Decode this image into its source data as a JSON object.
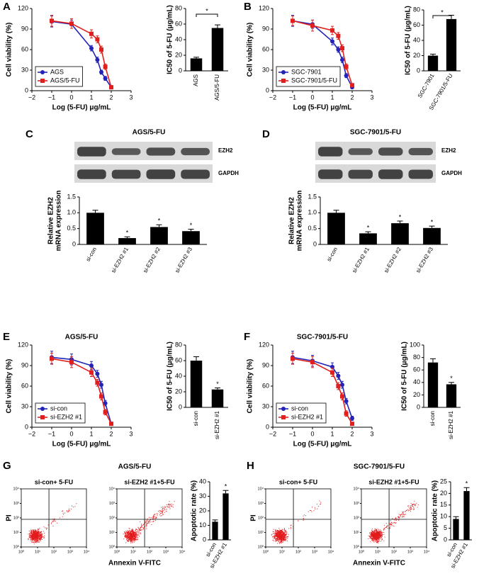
{
  "chart_data": [
    {
      "type": "line",
      "panel": "A",
      "xlabel": "Log (5-FU) μg/mL",
      "ylabel": "Cell viability (%)",
      "x": [
        -1,
        0,
        1,
        1.3,
        1.5,
        1.7,
        2
      ],
      "xlim": [
        -2,
        3
      ],
      "xticks": [
        {
          "value": -2,
          "label": "−2"
        },
        {
          "value": -1,
          "label": "−1"
        },
        0,
        1,
        2,
        3
      ],
      "ylim": [
        0,
        120
      ],
      "yticks": [
        0,
        30,
        60,
        90,
        120
      ],
      "legend": "lower left",
      "series": [
        {
          "name": "AGS",
          "color": "#2323b8",
          "marker": "circle",
          "values": [
            101,
            97,
            62,
            45,
            27,
            18,
            5
          ],
          "errors": [
            8,
            6,
            4,
            4,
            3,
            3,
            2
          ]
        },
        {
          "name": "AGS/5-FU",
          "color": "#e0201e",
          "marker": "square",
          "values": [
            102,
            98,
            83,
            75,
            60,
            35,
            5
          ],
          "errors": [
            8,
            7,
            6,
            5,
            5,
            4,
            2
          ]
        }
      ]
    },
    {
      "type": "bar",
      "ylabel": "IC50 of 5-FU (μg/mL)",
      "categories": [
        "AGS",
        "AGS/5-FU"
      ],
      "values": [
        16,
        55
      ],
      "errors": [
        1.5,
        4
      ],
      "color": "#000000",
      "ylim": [
        0,
        80
      ],
      "yticks": [
        0,
        20,
        40,
        60,
        80
      ],
      "bracket": "*"
    },
    {
      "type": "line",
      "panel": "B",
      "xlabel": "Log (5-FU) μg/mL",
      "ylabel": "Cell viability (%)",
      "x": [
        -1,
        0,
        1,
        1.3,
        1.5,
        1.7,
        2
      ],
      "xlim": [
        -2,
        3
      ],
      "xticks": [
        {
          "value": -2,
          "label": "−2"
        },
        {
          "value": -1,
          "label": "−1"
        },
        0,
        1,
        2,
        3
      ],
      "ylim": [
        0,
        120
      ],
      "yticks": [
        0,
        30,
        60,
        90,
        120
      ],
      "legend": "lower left",
      "series": [
        {
          "name": "SGC-7901",
          "color": "#2323b8",
          "marker": "circle",
          "values": [
            102,
            97,
            72,
            60,
            45,
            22,
            5
          ],
          "errors": [
            8,
            6,
            5,
            4,
            4,
            3,
            2
          ]
        },
        {
          "name": "SGC-7901/5-FU",
          "color": "#e0201e",
          "marker": "square",
          "values": [
            102,
            95,
            88,
            80,
            62,
            35,
            8
          ],
          "errors": [
            7,
            8,
            6,
            5,
            5,
            4,
            2
          ]
        }
      ]
    },
    {
      "type": "bar",
      "ylabel": "IC50 of 5-FU (μg/mL)",
      "categories": [
        "SGC-7901",
        "SGC-7901/5-FU"
      ],
      "values": [
        20,
        68
      ],
      "errors": [
        2,
        5
      ],
      "color": "#000000",
      "ylim": [
        0,
        80
      ],
      "yticks": [
        0,
        20,
        40,
        60,
        80
      ],
      "bracket": "*"
    },
    {
      "type": "blot",
      "panel": "C",
      "panel_title": "AGS/5-FU",
      "bands": [
        "EZH2",
        "GAPDH"
      ]
    },
    {
      "type": "bar",
      "ylabel": [
        "Relative EZH2",
        "mRNA expression"
      ],
      "categories": [
        "si-con",
        "si-EZH2 #1",
        "si-EZH2 #2",
        "si-EZH2 #3"
      ],
      "values": [
        1.0,
        0.2,
        0.55,
        0.42
      ],
      "errors": [
        0.08,
        0.04,
        0.07,
        0.06
      ],
      "color": "#000000",
      "significance": [
        null,
        "*",
        "*",
        "*"
      ],
      "ylim": [
        0,
        1.5
      ],
      "yticks": [
        0,
        0.5,
        {
          "value": 1,
          "label": "1.0"
        },
        1.5
      ]
    },
    {
      "type": "blot",
      "panel": "D",
      "panel_title": "SGC-7901/5-FU",
      "bands": [
        "EZH2",
        "GAPDH"
      ]
    },
    {
      "type": "bar",
      "ylabel": [
        "Relative EZH2",
        "mRNA expression"
      ],
      "categories": [
        "si-con",
        "si-EZH2 #1",
        "si-EZH2 #2",
        "si-EZH2 #3"
      ],
      "values": [
        1.0,
        0.35,
        0.67,
        0.52
      ],
      "errors": [
        0.08,
        0.05,
        0.07,
        0.06
      ],
      "color": "#000000",
      "significance": [
        null,
        "*",
        "*",
        "*"
      ],
      "ylim": [
        0,
        1.5
      ],
      "yticks": [
        0,
        0.5,
        {
          "value": 1,
          "label": "1.0"
        },
        1.5
      ]
    },
    {
      "type": "line",
      "panel": "E",
      "panel_title": "AGS/5-FU",
      "xlabel": "Log (5-FU) μg/mL",
      "ylabel": "Cell viability (%)",
      "x": [
        -1,
        0,
        1,
        1.3,
        1.5,
        1.7,
        2
      ],
      "xlim": [
        -2,
        3
      ],
      "xticks": [
        {
          "value": -2,
          "label": "−2"
        },
        {
          "value": -1,
          "label": "−1"
        },
        0,
        1,
        2,
        3
      ],
      "ylim": [
        0,
        120
      ],
      "yticks": [
        0,
        30,
        60,
        90,
        120
      ],
      "legend": "lower left",
      "series": [
        {
          "name": "si-con",
          "color": "#2323b8",
          "marker": "circle",
          "values": [
            102,
            99,
            90,
            78,
            62,
            35,
            5
          ],
          "errors": [
            9,
            8,
            6,
            5,
            5,
            4,
            2
          ]
        },
        {
          "name": "si-EZH2 #1",
          "color": "#e0201e",
          "marker": "square",
          "values": [
            100,
            95,
            80,
            65,
            45,
            22,
            5
          ],
          "errors": [
            8,
            8,
            6,
            5,
            5,
            4,
            2
          ]
        }
      ]
    },
    {
      "type": "bar",
      "ylabel": "IC50 of 5-FU (μg/mL)",
      "categories": [
        "si-con",
        "si-EZH2 #1"
      ],
      "values": [
        60,
        23
      ],
      "errors": [
        5,
        2
      ],
      "color": "#000000",
      "significance": [
        null,
        "*"
      ],
      "ylim": [
        0,
        80
      ],
      "yticks": [
        0,
        20,
        40,
        60,
        80
      ]
    },
    {
      "type": "line",
      "panel": "F",
      "panel_title": "SGC-7901/5-FU",
      "xlabel": "Log (5-FU) μg/mL",
      "ylabel": "Cell viability (%)",
      "x": [
        -1,
        0,
        1,
        1.3,
        1.5,
        1.7,
        2
      ],
      "xlim": [
        -2,
        3
      ],
      "xticks": [
        {
          "value": -2,
          "label": "−2"
        },
        {
          "value": -1,
          "label": "−1"
        },
        0,
        1,
        2,
        3
      ],
      "ylim": [
        0,
        120
      ],
      "yticks": [
        0,
        30,
        60,
        90,
        120
      ],
      "legend": "lower left",
      "series": [
        {
          "name": "si-con",
          "color": "#2323b8",
          "marker": "circle",
          "values": [
            102,
            97,
            88,
            75,
            62,
            38,
            13
          ],
          "errors": [
            9,
            8,
            6,
            5,
            5,
            4,
            3
          ]
        },
        {
          "name": "si-EZH2 #1",
          "color": "#e0201e",
          "marker": "square",
          "values": [
            100,
            95,
            80,
            60,
            45,
            20,
            5
          ],
          "errors": [
            8,
            8,
            6,
            5,
            5,
            4,
            2
          ]
        }
      ]
    },
    {
      "type": "bar",
      "ylabel": "IC50 of 5-FU (μg/mL)",
      "categories": [
        "si-con",
        "si-EZH2 #1"
      ],
      "values": [
        72,
        37
      ],
      "errors": [
        6,
        3
      ],
      "color": "#000000",
      "significance": [
        null,
        "*"
      ],
      "ylim": [
        0,
        100
      ],
      "yticks": [
        0,
        20,
        40,
        60,
        80,
        100
      ]
    },
    {
      "type": "flow",
      "panel": "G",
      "panel_title": "AGS/5-FU",
      "title": "si-con+ 5-FU",
      "xlabel": "Annexin V-FITC",
      "ylabel": "PI",
      "log": true,
      "xlim": [
        1,
        10000
      ],
      "ylim": [
        1,
        10000
      ],
      "quadrant": [
        50,
        80
      ],
      "xticks": [
        {
          "value": 1,
          "label": "10⁰"
        },
        {
          "value": 10,
          "label": "10¹"
        },
        {
          "value": 100,
          "label": "10²"
        },
        {
          "value": 1000,
          "label": "10³"
        },
        {
          "value": 10000,
          "label": "10⁴"
        }
      ],
      "yticks": [
        {
          "value": 1,
          "label": "10⁰"
        },
        {
          "value": 10,
          "label": "10¹"
        },
        {
          "value": 100,
          "label": "10²"
        },
        {
          "value": 1000,
          "label": "10³"
        },
        {
          "value": 10000,
          "label": "10⁴"
        }
      ]
    },
    {
      "type": "flow",
      "title": "si-EZH2 #1+5-FU",
      "log": true,
      "xlim": [
        1,
        10000
      ],
      "ylim": [
        1,
        10000
      ],
      "quadrant": [
        50,
        80
      ],
      "xticks": [
        {
          "value": 1,
          "label": "10⁰"
        },
        {
          "value": 10,
          "label": "10¹"
        },
        {
          "value": 100,
          "label": "10²"
        },
        {
          "value": 1000,
          "label": "10³"
        },
        {
          "value": 10000,
          "label": "10⁴"
        }
      ],
      "yticks": [
        {
          "value": 1,
          "label": "10⁰"
        },
        {
          "value": 10,
          "label": "10¹"
        },
        {
          "value": 100,
          "label": "10²"
        },
        {
          "value": 1000,
          "label": "10³"
        },
        {
          "value": 10000,
          "label": "10⁴"
        }
      ]
    },
    {
      "type": "bar",
      "ylabel": "Apoptotic rate (%)",
      "categories": [
        "si-con",
        "si-EZH2 #1"
      ],
      "values": [
        12.5,
        32
      ],
      "errors": [
        1.2,
        2
      ],
      "color": "#000000",
      "significance": [
        null,
        "*"
      ],
      "ylim": [
        0,
        40
      ],
      "yticks": [
        0,
        10,
        20,
        30,
        40
      ]
    },
    {
      "type": "flow",
      "panel": "H",
      "panel_title": "SGC-7901/5-FU",
      "title": "si-con+ 5-FU",
      "xlabel": "Annexin V-FITC",
      "ylabel": "PI",
      "log": true,
      "xlim": [
        1,
        10000
      ],
      "ylim": [
        1,
        10000
      ],
      "quadrant": [
        50,
        80
      ],
      "xticks": [
        {
          "value": 1,
          "label": "10⁰"
        },
        {
          "value": 10,
          "label": "10¹"
        },
        {
          "value": 100,
          "label": "10²"
        },
        {
          "value": 1000,
          "label": "10³"
        },
        {
          "value": 10000,
          "label": "10⁴"
        }
      ],
      "yticks": [
        {
          "value": 1,
          "label": "10⁰"
        },
        {
          "value": 10,
          "label": "10¹"
        },
        {
          "value": 100,
          "label": "10²"
        },
        {
          "value": 1000,
          "label": "10³"
        },
        {
          "value": 10000,
          "label": "10⁴"
        }
      ]
    },
    {
      "type": "flow",
      "title": "si-EZH2 #1+5-FU",
      "log": true,
      "xlim": [
        1,
        10000
      ],
      "ylim": [
        1,
        10000
      ],
      "quadrant": [
        50,
        80
      ],
      "xticks": [
        {
          "value": 1,
          "label": "10⁰"
        },
        {
          "value": 10,
          "label": "10¹"
        },
        {
          "value": 100,
          "label": "10²"
        },
        {
          "value": 1000,
          "label": "10³"
        },
        {
          "value": 10000,
          "label": "10⁴"
        }
      ],
      "yticks": [
        {
          "value": 1,
          "label": "10⁰"
        },
        {
          "value": 10,
          "label": "10¹"
        },
        {
          "value": 100,
          "label": "10²"
        },
        {
          "value": 1000,
          "label": "10³"
        },
        {
          "value": 10000,
          "label": "10⁴"
        }
      ]
    },
    {
      "type": "bar",
      "ylabel": "Apoptotic rate (%)",
      "categories": [
        "si-con",
        "si-EZH2 #1"
      ],
      "values": [
        9,
        21
      ],
      "errors": [
        1,
        1.5
      ],
      "color": "#000000",
      "significance": [
        null,
        "*"
      ],
      "ylim": [
        0,
        25
      ],
      "yticks": [
        0,
        5,
        10,
        15,
        20,
        25
      ]
    }
  ]
}
